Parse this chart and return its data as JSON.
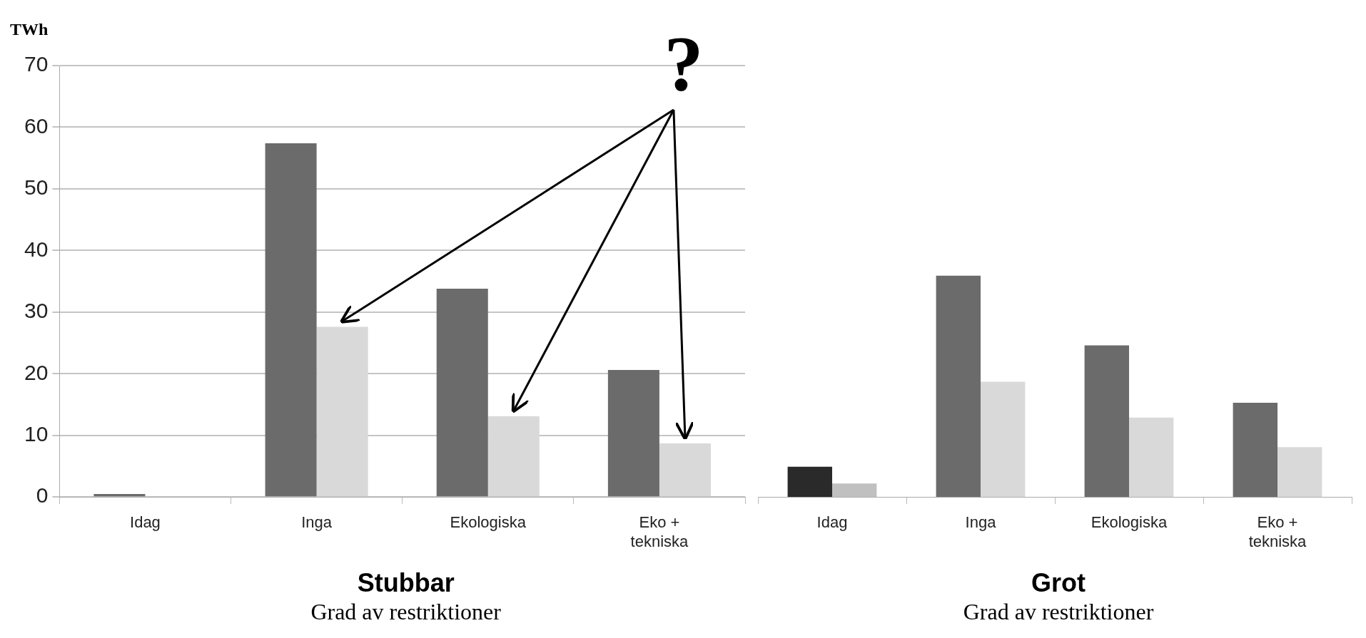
{
  "chart_data": [
    {
      "type": "bar",
      "title": "Stubbar",
      "xlabel": "Grad av restriktioner",
      "ylabel": "TWh",
      "categories": [
        "Idag",
        "Inga",
        "Ekologiska",
        "Eko + tekniska"
      ],
      "series": [
        {
          "color": "#6b6b6b",
          "values": [
            0.5,
            57.4,
            33.8,
            20.6
          ]
        },
        {
          "color": "#d9d9d9",
          "values": [
            null,
            27.6,
            13.1,
            8.7
          ]
        }
      ],
      "ylim": [
        0,
        70
      ],
      "yticks": [
        0,
        10,
        20,
        30,
        40,
        50,
        60,
        70
      ],
      "grid": "y",
      "annotations": [
        "?"
      ]
    },
    {
      "type": "bar",
      "title": "Grot",
      "xlabel": "Grad av restriktioner",
      "categories": [
        "Idag",
        "Inga",
        "Ekologiska",
        "Eko + tekniska"
      ],
      "series": [
        {
          "colors": [
            "#2a2a2a",
            "#6b6b6b",
            "#6b6b6b",
            "#6b6b6b"
          ],
          "values": [
            4.9,
            35.9,
            24.6,
            15.3
          ]
        },
        {
          "colors": [
            "#c0c0c0",
            "#d9d9d9",
            "#d9d9d9",
            "#d9d9d9"
          ],
          "values": [
            2.2,
            18.7,
            12.9,
            8.1
          ]
        }
      ],
      "ylim": [
        0,
        70
      ],
      "yticks": [
        0,
        10,
        20,
        30,
        40,
        50,
        60,
        70
      ],
      "tick_labels": "x"
    }
  ]
}
